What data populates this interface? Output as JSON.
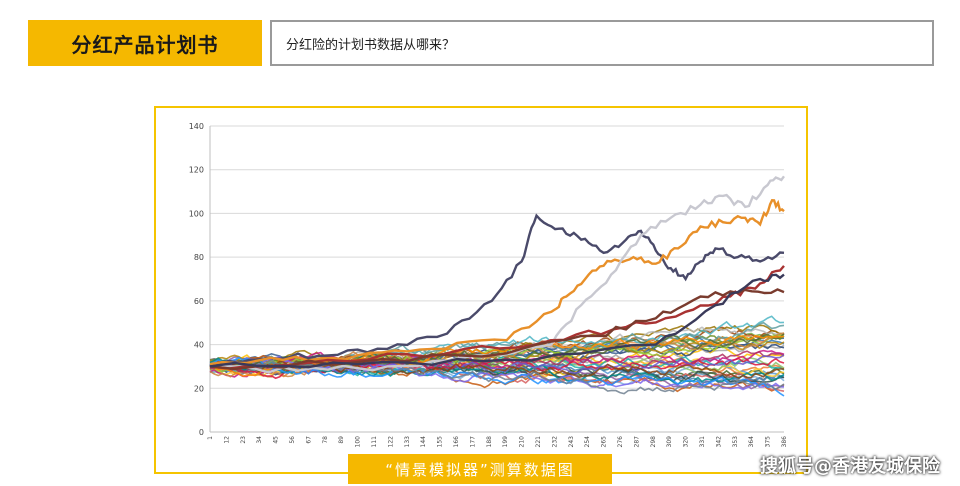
{
  "header": {
    "title": "分红产品计划书",
    "question": "分红险的计划书数据从哪来？"
  },
  "caption": "“情景模拟器”测算数据图",
  "watermark": "搜狐号@香港友城保险",
  "colors": {
    "accent": "#f5b800",
    "frame": "#f5c400",
    "grid": "#d9d9d9"
  },
  "chart_data": {
    "type": "line",
    "title": "",
    "xlabel": "",
    "ylabel": "",
    "ylim": [
      0,
      140
    ],
    "yticks": [
      0,
      20,
      40,
      60,
      80,
      100,
      120,
      140
    ],
    "grid": true,
    "x_range": [
      1,
      386
    ],
    "xtick_labels": [
      "1",
      "12",
      "23",
      "34",
      "45",
      "56",
      "67",
      "78",
      "89",
      "100",
      "111",
      "122",
      "133",
      "144",
      "155",
      "166",
      "177",
      "188",
      "199",
      "210",
      "221",
      "232",
      "243",
      "254",
      "265",
      "276",
      "287",
      "298",
      "309",
      "320",
      "331",
      "342",
      "353",
      "364",
      "375",
      "386"
    ],
    "highlight_series": [
      {
        "color": "#4a4a6a",
        "x": [
          1,
          40,
          80,
          120,
          160,
          190,
          210,
          220,
          235,
          250,
          265,
          280,
          290,
          300,
          310,
          320,
          330,
          340,
          355,
          370,
          386
        ],
        "y": [
          30,
          34,
          35,
          38,
          45,
          60,
          78,
          99,
          93,
          88,
          82,
          88,
          92,
          83,
          75,
          70,
          78,
          84,
          80,
          78,
          82
        ]
      },
      {
        "color": "#e8902a",
        "x": [
          1,
          50,
          100,
          150,
          200,
          230,
          240,
          255,
          270,
          285,
          300,
          315,
          330,
          345,
          360,
          370,
          378,
          386
        ],
        "y": [
          31,
          33,
          35,
          38,
          42,
          55,
          62,
          72,
          78,
          80,
          77,
          84,
          94,
          96,
          98,
          95,
          106,
          101
        ]
      },
      {
        "color": "#c8c8d0",
        "x": [
          1,
          60,
          120,
          180,
          230,
          250,
          270,
          290,
          310,
          330,
          345,
          360,
          375,
          386
        ],
        "y": [
          30,
          28,
          30,
          35,
          40,
          58,
          72,
          90,
          98,
          104,
          108,
          103,
          113,
          117
        ]
      },
      {
        "color": "#a83232",
        "x": [
          1,
          80,
          160,
          230,
          280,
          320,
          350,
          370,
          386
        ],
        "y": [
          30,
          33,
          36,
          42,
          48,
          55,
          62,
          68,
          76
        ]
      },
      {
        "color": "#7a3b2e",
        "x": [
          1,
          100,
          200,
          260,
          300,
          330,
          360,
          386
        ],
        "y": [
          30,
          32,
          36,
          44,
          52,
          62,
          65,
          64
        ]
      },
      {
        "color": "#3a3a5a",
        "x": [
          1,
          100,
          200,
          300,
          340,
          370,
          386
        ],
        "y": [
          30,
          31,
          33,
          40,
          58,
          70,
          72
        ]
      }
    ],
    "series_count_approx": 40,
    "series_palette": [
      "#2e75b6",
      "#ed7d31",
      "#a5a5a5",
      "#ffc000",
      "#5b9bd5",
      "#70ad47",
      "#264478",
      "#9e480e",
      "#636363",
      "#997300",
      "#43682b",
      "#7cafdd",
      "#f1975a",
      "#b7b7b7",
      "#ffcd33",
      "#8cc168",
      "#3a5f8f",
      "#c55a11",
      "#4cb5c4",
      "#8e5ea2",
      "#d65f5f",
      "#6b8e23",
      "#20b2aa",
      "#b8860b",
      "#c71585",
      "#4682b4",
      "#9acd32",
      "#cd853f",
      "#5f9ea0",
      "#2f4f4f",
      "#dc143c",
      "#008b8b",
      "#b03060",
      "#6a5acd",
      "#7b68ee",
      "#556b2f",
      "#1e90ff",
      "#ff8c00",
      "#8b4513",
      "#708090"
    ],
    "typical_end_range": [
      18,
      55
    ],
    "start_value": 30
  }
}
